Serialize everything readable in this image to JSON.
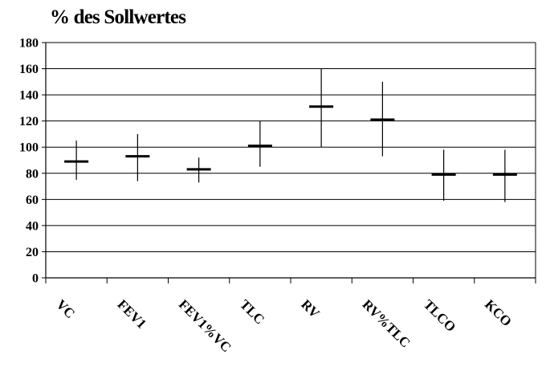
{
  "chart_data": {
    "type": "error-bar",
    "title": "% des Sollwertes",
    "xlabel": "",
    "ylabel": "",
    "ylim": [
      0,
      180
    ],
    "yticks": [
      0,
      20,
      40,
      60,
      80,
      100,
      120,
      140,
      160,
      180
    ],
    "grid": true,
    "legend": "none",
    "categories": [
      "VC",
      "FEV1",
      "FEV1%VC",
      "TLC",
      "RV",
      "RV%TLC",
      "TLCO",
      "KCO"
    ],
    "mean": [
      89,
      93,
      83,
      101,
      131,
      121,
      79,
      79
    ],
    "low": [
      75,
      74,
      73,
      85,
      100,
      93,
      59,
      58
    ],
    "high": [
      105,
      110,
      92,
      120,
      160,
      150,
      98,
      98
    ],
    "colors": {
      "marks": "#000000",
      "grid": "#000000",
      "background": "#ffffff"
    }
  }
}
